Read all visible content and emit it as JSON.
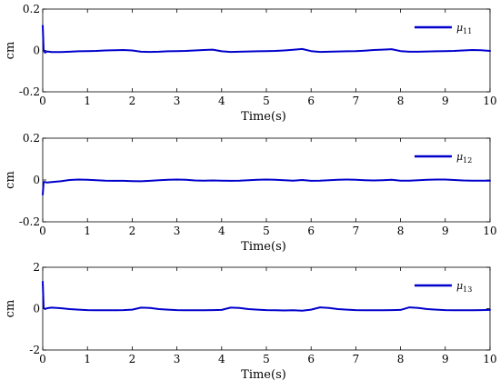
{
  "chart_data": [
    {
      "type": "line",
      "xlabel": "Time(s)",
      "ylabel": "cm",
      "xlim": [
        0,
        10
      ],
      "ylim": [
        -0.2,
        0.2
      ],
      "xticks": [
        "0",
        "1",
        "2",
        "3",
        "4",
        "5",
        "6",
        "7",
        "8",
        "9",
        "10"
      ],
      "yticks": [
        "-0.2",
        "0",
        "0.2"
      ],
      "legend_position": "top-right",
      "color": "#0000cc",
      "series": [
        {
          "name": "μ11",
          "name_base": "μ",
          "name_sub": "11",
          "x": [
            0,
            0.02,
            0.05,
            0.1,
            0.2,
            0.4,
            0.6,
            0.8,
            1.0,
            1.2,
            1.4,
            1.6,
            1.8,
            2.0,
            2.2,
            2.4,
            2.6,
            2.8,
            3.0,
            3.2,
            3.4,
            3.6,
            3.8,
            4.0,
            4.2,
            4.4,
            4.6,
            4.8,
            5.0,
            5.2,
            5.4,
            5.6,
            5.8,
            6.0,
            6.2,
            6.4,
            6.6,
            6.8,
            7.0,
            7.2,
            7.4,
            7.6,
            7.8,
            8.0,
            8.2,
            8.4,
            8.6,
            8.8,
            9.0,
            9.2,
            9.4,
            9.6,
            9.8,
            10.0
          ],
          "y": [
            0.12,
            0.0,
            -0.01,
            -0.005,
            -0.008,
            -0.008,
            -0.006,
            -0.004,
            -0.003,
            -0.002,
            0.0,
            0.001,
            0.002,
            0.0,
            -0.006,
            -0.007,
            -0.006,
            -0.004,
            -0.003,
            -0.002,
            0.0,
            0.002,
            0.004,
            -0.004,
            -0.007,
            -0.006,
            -0.005,
            -0.004,
            -0.003,
            -0.002,
            0.0,
            0.003,
            0.007,
            -0.003,
            -0.007,
            -0.006,
            -0.005,
            -0.004,
            -0.003,
            -0.001,
            0.002,
            0.004,
            0.006,
            -0.003,
            -0.006,
            -0.006,
            -0.005,
            -0.004,
            -0.003,
            -0.002,
            0.0,
            0.002,
            0.001,
            -0.002
          ]
        }
      ]
    },
    {
      "type": "line",
      "xlabel": "Time(s)",
      "ylabel": "cm",
      "xlim": [
        0,
        10
      ],
      "ylim": [
        -0.2,
        0.2
      ],
      "xticks": [
        "0",
        "1",
        "2",
        "3",
        "4",
        "5",
        "6",
        "7",
        "8",
        "9",
        "10"
      ],
      "yticks": [
        "-0.2",
        "0",
        "0.2"
      ],
      "legend_position": "top-right",
      "color": "#0000cc",
      "series": [
        {
          "name": "μ12",
          "name_base": "μ",
          "name_sub": "12",
          "x": [
            0,
            0.02,
            0.05,
            0.1,
            0.2,
            0.4,
            0.6,
            0.8,
            1.0,
            1.2,
            1.4,
            1.6,
            1.8,
            2.0,
            2.2,
            2.4,
            2.6,
            2.8,
            3.0,
            3.2,
            3.4,
            3.6,
            3.8,
            4.0,
            4.2,
            4.4,
            4.6,
            4.8,
            5.0,
            5.2,
            5.4,
            5.6,
            5.8,
            6.0,
            6.2,
            6.4,
            6.6,
            6.8,
            7.0,
            7.2,
            7.4,
            7.6,
            7.8,
            8.0,
            8.2,
            8.4,
            8.6,
            8.8,
            9.0,
            9.2,
            9.4,
            9.6,
            9.8,
            10.0
          ],
          "y": [
            -0.07,
            -0.01,
            -0.01,
            -0.012,
            -0.01,
            -0.006,
            0.0,
            0.002,
            0.001,
            -0.001,
            -0.003,
            -0.004,
            -0.004,
            -0.005,
            -0.006,
            -0.004,
            -0.001,
            0.001,
            0.002,
            0.001,
            -0.002,
            -0.003,
            -0.002,
            -0.003,
            -0.004,
            -0.003,
            -0.001,
            0.001,
            0.002,
            0.001,
            -0.001,
            -0.003,
            0.0,
            -0.004,
            -0.003,
            -0.001,
            0.001,
            0.002,
            0.001,
            -0.001,
            -0.002,
            -0.001,
            0.001,
            -0.003,
            -0.003,
            -0.001,
            0.001,
            0.002,
            0.002,
            0.0,
            -0.002,
            -0.003,
            -0.003,
            -0.003
          ]
        }
      ]
    },
    {
      "type": "line",
      "xlabel": "Time(s)",
      "ylabel": "cm",
      "xlim": [
        0,
        10
      ],
      "ylim": [
        -2,
        2
      ],
      "xticks": [
        "0",
        "1",
        "2",
        "3",
        "4",
        "5",
        "6",
        "7",
        "8",
        "9",
        "10"
      ],
      "yticks": [
        "-2",
        "0",
        "2"
      ],
      "legend_position": "top-right",
      "color": "#0000cc",
      "series": [
        {
          "name": "μ13",
          "name_base": "μ",
          "name_sub": "13",
          "x": [
            0,
            0.02,
            0.05,
            0.1,
            0.2,
            0.4,
            0.6,
            0.8,
            1.0,
            1.2,
            1.4,
            1.6,
            1.8,
            2.0,
            2.2,
            2.4,
            2.6,
            2.8,
            3.0,
            3.2,
            3.4,
            3.6,
            3.8,
            4.0,
            4.2,
            4.4,
            4.6,
            4.8,
            5.0,
            5.2,
            5.4,
            5.6,
            5.8,
            6.0,
            6.2,
            6.4,
            6.6,
            6.8,
            7.0,
            7.2,
            7.4,
            7.6,
            7.8,
            8.0,
            8.2,
            8.4,
            8.6,
            8.8,
            9.0,
            9.2,
            9.4,
            9.6,
            9.8,
            10.0
          ],
          "y": [
            1.3,
            0.05,
            -0.02,
            0.02,
            0.05,
            0.02,
            -0.02,
            -0.05,
            -0.07,
            -0.08,
            -0.08,
            -0.08,
            -0.07,
            -0.05,
            0.05,
            0.03,
            -0.02,
            -0.05,
            -0.07,
            -0.08,
            -0.08,
            -0.08,
            -0.07,
            -0.06,
            0.05,
            0.03,
            -0.02,
            -0.05,
            -0.07,
            -0.08,
            -0.09,
            -0.08,
            -0.1,
            -0.05,
            0.06,
            0.03,
            -0.02,
            -0.05,
            -0.07,
            -0.08,
            -0.08,
            -0.08,
            -0.07,
            -0.06,
            0.06,
            0.03,
            -0.02,
            -0.05,
            -0.07,
            -0.08,
            -0.08,
            -0.08,
            -0.07,
            -0.06
          ]
        }
      ]
    }
  ]
}
